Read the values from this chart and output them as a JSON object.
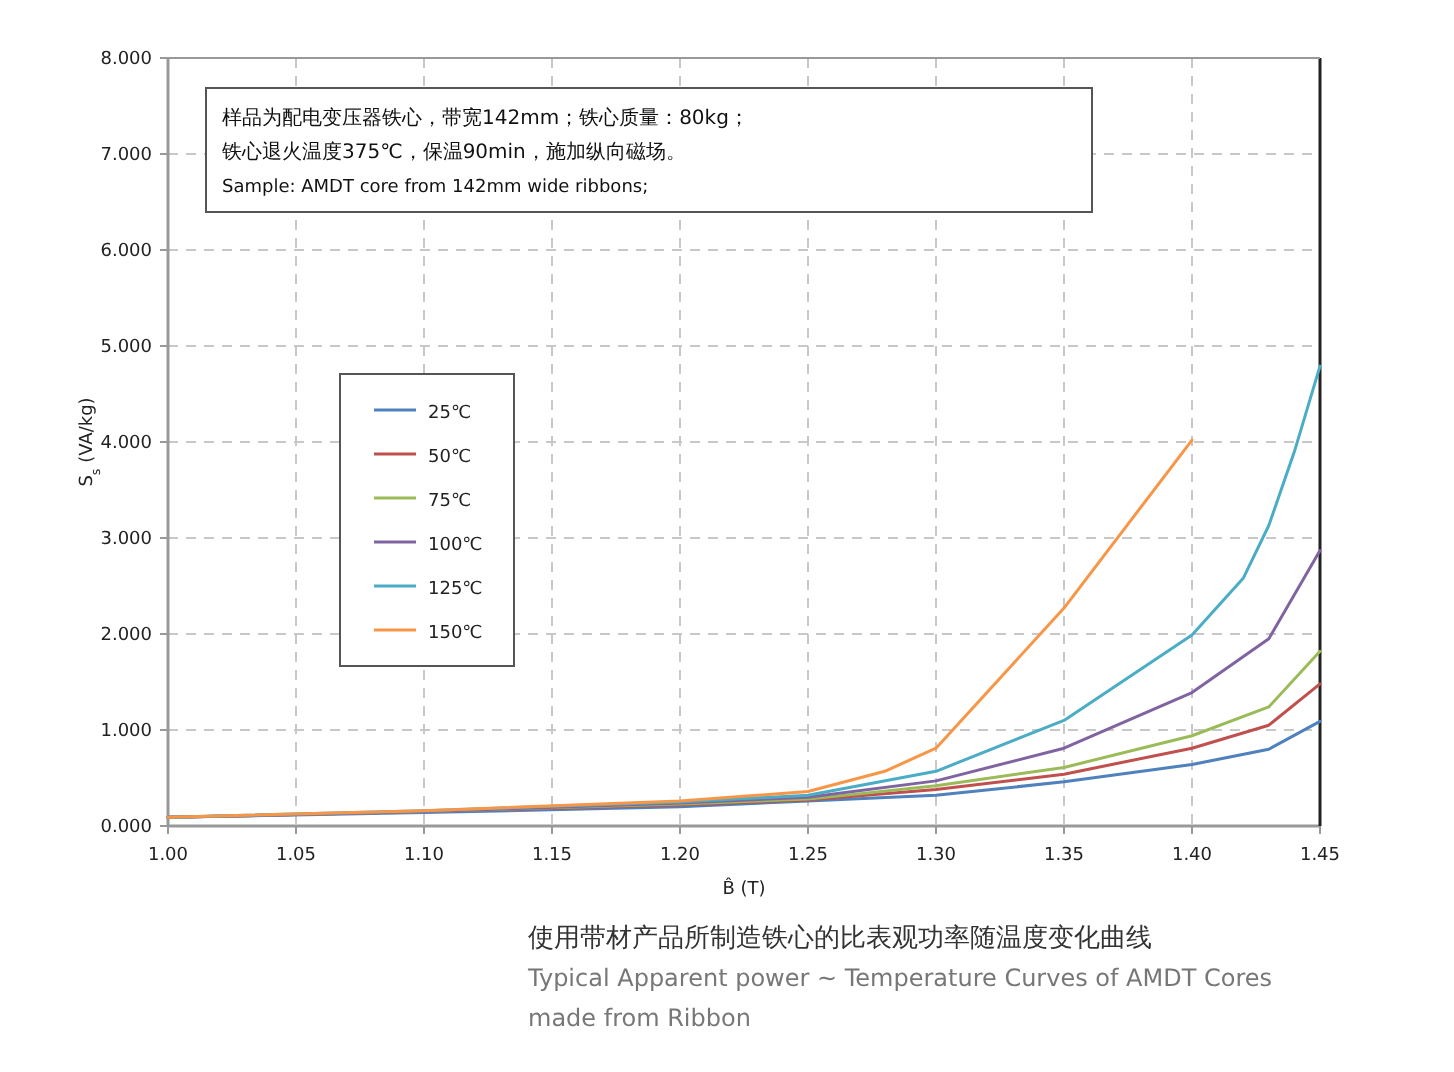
{
  "chart_data": {
    "type": "line",
    "xlabel": "B̂ (T)",
    "ylabel": "S$_{s}$ (VA/kg)",
    "xlim": [
      1.0,
      1.45
    ],
    "xticks": [
      {
        "value": 1.0,
        "label": "1.00"
      },
      {
        "value": 1.05,
        "label": "1.05"
      },
      {
        "value": 1.1,
        "label": "1.10"
      },
      {
        "value": 1.15,
        "label": "1.15"
      },
      {
        "value": 1.2,
        "label": "1.20"
      },
      {
        "value": 1.25,
        "label": "1.25"
      },
      {
        "value": 1.3,
        "label": "1.30"
      },
      {
        "value": 1.35,
        "label": "1.35"
      },
      {
        "value": 1.4,
        "label": "1.40"
      },
      {
        "value": 1.45,
        "label": "1.45"
      }
    ],
    "ylim": [
      0,
      8
    ],
    "yticks": [
      {
        "value": 0,
        "label": "0.000"
      },
      {
        "value": 1,
        "label": "1.000"
      },
      {
        "value": 2,
        "label": "2.000"
      },
      {
        "value": 3,
        "label": "3.000"
      },
      {
        "value": 4,
        "label": "4.000"
      },
      {
        "value": 5,
        "label": "5.000"
      },
      {
        "value": 6,
        "label": "6.000"
      },
      {
        "value": 7,
        "label": "7.000"
      },
      {
        "value": 8,
        "label": "8.000"
      }
    ],
    "grid": true,
    "legend": "left",
    "line_style": "solid",
    "marker": "none",
    "series": [
      {
        "name": "25℃",
        "color": "#4f81bd",
        "x": [
          1.0,
          1.1,
          1.2,
          1.25,
          1.3,
          1.35,
          1.4,
          1.43,
          1.45
        ],
        "values": [
          0.09,
          0.14,
          0.2,
          0.26,
          0.32,
          0.46,
          0.64,
          0.8,
          1.09
        ]
      },
      {
        "name": "50℃",
        "color": "#c0504d",
        "x": [
          1.0,
          1.1,
          1.2,
          1.25,
          1.3,
          1.35,
          1.4,
          1.43,
          1.45
        ],
        "values": [
          0.09,
          0.15,
          0.22,
          0.27,
          0.38,
          0.54,
          0.81,
          1.05,
          1.48
        ]
      },
      {
        "name": "75℃",
        "color": "#9bbb59",
        "x": [
          1.0,
          1.1,
          1.2,
          1.25,
          1.3,
          1.35,
          1.4,
          1.43,
          1.45
        ],
        "values": [
          0.09,
          0.15,
          0.23,
          0.28,
          0.42,
          0.61,
          0.94,
          1.24,
          1.82
        ]
      },
      {
        "name": "100℃",
        "color": "#8064a2",
        "x": [
          1.0,
          1.1,
          1.2,
          1.25,
          1.3,
          1.35,
          1.4,
          1.43,
          1.45
        ],
        "values": [
          0.09,
          0.15,
          0.24,
          0.3,
          0.47,
          0.81,
          1.39,
          1.95,
          2.87
        ]
      },
      {
        "name": "125℃",
        "color": "#4bacc6",
        "x": [
          1.0,
          1.1,
          1.2,
          1.25,
          1.3,
          1.35,
          1.4,
          1.42,
          1.43,
          1.44,
          1.45
        ],
        "values": [
          0.09,
          0.16,
          0.25,
          0.32,
          0.57,
          1.1,
          1.99,
          2.58,
          3.13,
          3.9,
          4.79
        ]
      },
      {
        "name": "150℃",
        "color": "#f79646",
        "x": [
          1.0,
          1.1,
          1.2,
          1.25,
          1.28,
          1.3,
          1.35,
          1.4
        ],
        "values": [
          0.09,
          0.16,
          0.26,
          0.36,
          0.57,
          0.81,
          2.27,
          4.02
        ]
      }
    ],
    "annotations": [
      "样品为配电变压器铁心，带宽142mm；铁心质量：80kg；",
      "铁心退火温度375℃，保温90min，施加纵向磁场。",
      "Sample: AMDT core from 142mm wide ribbons;",
      "使用带材产品所制造铁心的比表观功率随温度变化曲线",
      "Typical Apparent power ~ Temperature Curves of AMDT Cores",
      "made from Ribbon"
    ]
  }
}
